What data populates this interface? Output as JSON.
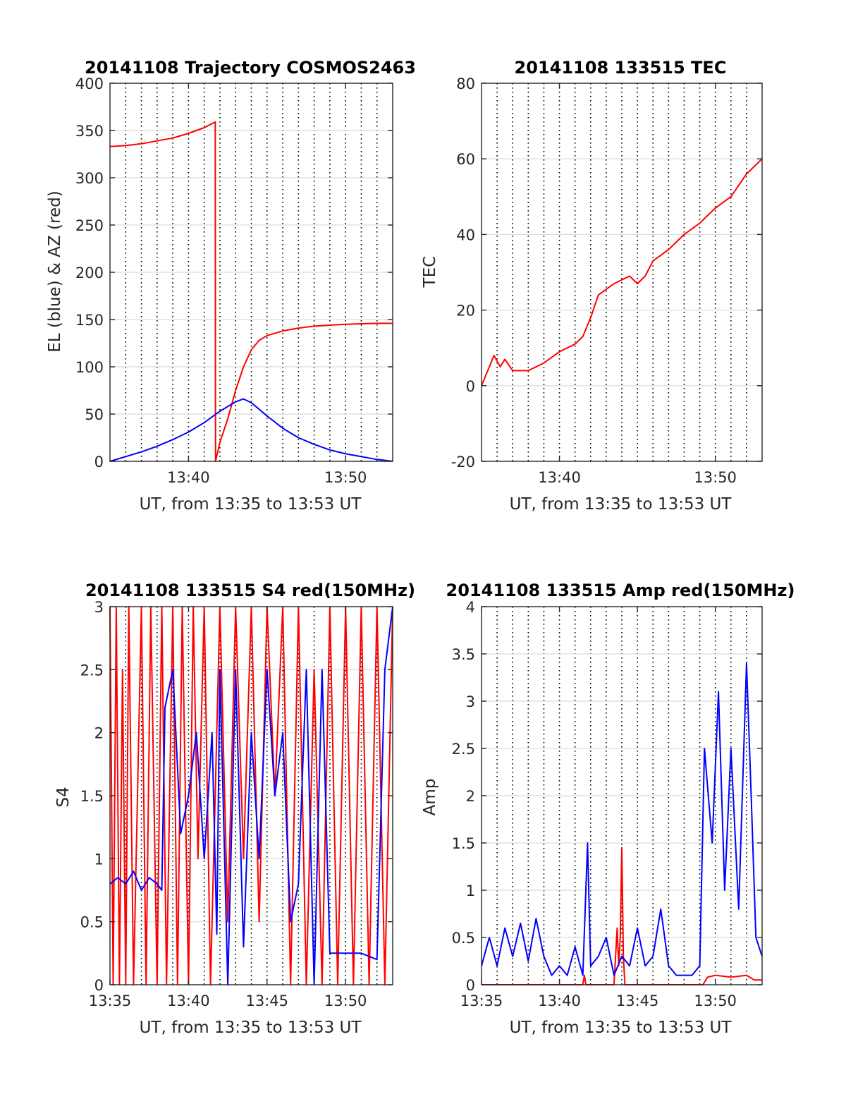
{
  "chart_data": [
    {
      "type": "line",
      "title": "20141108 Trajectory COSMOS2463",
      "xlabel": "UT, from 13:35 to 13:53 UT",
      "ylabel": "EL (blue) & AZ (red)",
      "xlim": [
        0,
        18
      ],
      "ylim": [
        0,
        400
      ],
      "x_ticks": [
        5,
        15
      ],
      "x_tick_labels": [
        "13:40",
        "13:50"
      ],
      "y_ticks": [
        0,
        50,
        100,
        150,
        200,
        250,
        300,
        350,
        400
      ],
      "grid": true,
      "series": [
        {
          "color": "#ff0000",
          "points": [
            [
              0,
              333
            ],
            [
              1,
              334
            ],
            [
              2,
              336
            ],
            [
              3,
              339
            ],
            [
              4,
              342
            ],
            [
              5,
              347
            ],
            [
              6,
              353
            ],
            [
              6.7,
              359
            ],
            [
              6.72,
              0
            ],
            [
              7,
              20
            ],
            [
              7.5,
              45
            ],
            [
              8,
              75
            ],
            [
              8.5,
              100
            ],
            [
              9,
              118
            ],
            [
              9.5,
              128
            ],
            [
              10,
              133
            ],
            [
              11,
              138
            ],
            [
              12,
              141
            ],
            [
              13,
              143
            ],
            [
              14,
              144
            ],
            [
              15,
              145
            ],
            [
              16,
              145.5
            ],
            [
              17,
              146
            ],
            [
              18,
              146
            ]
          ]
        },
        {
          "color": "#0000ff",
          "points": [
            [
              0,
              0
            ],
            [
              1,
              5
            ],
            [
              2,
              10
            ],
            [
              3,
              16
            ],
            [
              4,
              23
            ],
            [
              5,
              31
            ],
            [
              6,
              41
            ],
            [
              7,
              53
            ],
            [
              8,
              63
            ],
            [
              8.5,
              66
            ],
            [
              9,
              62
            ],
            [
              10,
              48
            ],
            [
              11,
              35
            ],
            [
              12,
              25
            ],
            [
              13,
              18
            ],
            [
              14,
              12
            ],
            [
              15,
              8
            ],
            [
              16,
              5
            ],
            [
              17,
              2
            ],
            [
              18,
              0
            ]
          ]
        }
      ]
    },
    {
      "type": "line",
      "title": "20141108 133515 TEC",
      "xlabel": "UT, from 13:35 to 13:53 UT",
      "ylabel": "TEC",
      "xlim": [
        0,
        18
      ],
      "ylim": [
        -20,
        80
      ],
      "x_ticks": [
        5,
        15
      ],
      "x_tick_labels": [
        "13:40",
        "13:50"
      ],
      "y_ticks": [
        -20,
        0,
        20,
        40,
        60,
        80
      ],
      "grid": true,
      "series": [
        {
          "color": "#ff0000",
          "points": [
            [
              0,
              0
            ],
            [
              0.5,
              5
            ],
            [
              0.8,
              8
            ],
            [
              1.2,
              5
            ],
            [
              1.5,
              7
            ],
            [
              2,
              4
            ],
            [
              3,
              4
            ],
            [
              4,
              6
            ],
            [
              5,
              9
            ],
            [
              6,
              11
            ],
            [
              6.5,
              13
            ],
            [
              7,
              18
            ],
            [
              7.5,
              24
            ],
            [
              8.5,
              27
            ],
            [
              9.5,
              29
            ],
            [
              10,
              27
            ],
            [
              10.5,
              29
            ],
            [
              11,
              33
            ],
            [
              12,
              36
            ],
            [
              13,
              40
            ],
            [
              14,
              43
            ],
            [
              15,
              47
            ],
            [
              16,
              50
            ],
            [
              17,
              56
            ],
            [
              18,
              60
            ]
          ]
        }
      ]
    },
    {
      "type": "line",
      "title": "20141108 133515 S4 red(150MHz)",
      "xlabel": "UT, from 13:35 to 13:53 UT",
      "ylabel": "S4",
      "xlim": [
        0,
        18
      ],
      "ylim": [
        0,
        3
      ],
      "x_ticks": [
        0,
        5,
        10,
        15
      ],
      "x_tick_labels": [
        "13:35",
        "13:40",
        "13:45",
        "13:50"
      ],
      "y_ticks": [
        0,
        0.5,
        1,
        1.5,
        2,
        2.5,
        3
      ],
      "grid": true,
      "series": [
        {
          "color": "#ff0000",
          "points": [
            [
              0,
              3
            ],
            [
              0.2,
              0
            ],
            [
              0.4,
              3
            ],
            [
              0.6,
              0
            ],
            [
              0.8,
              2.5
            ],
            [
              1,
              0
            ],
            [
              1.2,
              3
            ],
            [
              1.5,
              0
            ],
            [
              2,
              3
            ],
            [
              2.3,
              0
            ],
            [
              2.6,
              3
            ],
            [
              3,
              0
            ],
            [
              3.3,
              3
            ],
            [
              3.6,
              0
            ],
            [
              4,
              3
            ],
            [
              4.3,
              0
            ],
            [
              4.6,
              3
            ],
            [
              5,
              0
            ],
            [
              5.3,
              3
            ],
            [
              5.6,
              1
            ],
            [
              6,
              3
            ],
            [
              6.4,
              0
            ],
            [
              7,
              3
            ],
            [
              7.5,
              0.5
            ],
            [
              8,
              3
            ],
            [
              8.5,
              1
            ],
            [
              9,
              3
            ],
            [
              9.5,
              0.5
            ],
            [
              10,
              3
            ],
            [
              10.5,
              1.5
            ],
            [
              11,
              3
            ],
            [
              11.5,
              0
            ],
            [
              12,
              3
            ],
            [
              12.5,
              0
            ],
            [
              13,
              2.5
            ],
            [
              13.5,
              0
            ],
            [
              14,
              3
            ],
            [
              14.5,
              0
            ],
            [
              15,
              3
            ],
            [
              15.5,
              0
            ],
            [
              16,
              3
            ],
            [
              16.5,
              0
            ],
            [
              17,
              3
            ],
            [
              17.5,
              0
            ],
            [
              18,
              3
            ]
          ]
        },
        {
          "color": "#0000ff",
          "points": [
            [
              0,
              0.8
            ],
            [
              0.5,
              0.85
            ],
            [
              1,
              0.8
            ],
            [
              1.5,
              0.9
            ],
            [
              2,
              0.75
            ],
            [
              2.5,
              0.85
            ],
            [
              3,
              0.8
            ],
            [
              3.3,
              0.75
            ],
            [
              3.5,
              2.2
            ],
            [
              4,
              2.5
            ],
            [
              4.5,
              1.2
            ],
            [
              5,
              1.5
            ],
            [
              5.5,
              2
            ],
            [
              6,
              1
            ],
            [
              6.5,
              2
            ],
            [
              6.8,
              0.4
            ],
            [
              7,
              2.5
            ],
            [
              7.5,
              0
            ],
            [
              8,
              2.5
            ],
            [
              8.5,
              0.3
            ],
            [
              9,
              2
            ],
            [
              9.5,
              1
            ],
            [
              10,
              2.5
            ],
            [
              10.5,
              1.5
            ],
            [
              11,
              2
            ],
            [
              11.5,
              0.5
            ],
            [
              12,
              0.8
            ],
            [
              12.5,
              2.5
            ],
            [
              13,
              0
            ],
            [
              13.5,
              2.5
            ],
            [
              14,
              0.25
            ],
            [
              15,
              0.25
            ],
            [
              16,
              0.25
            ],
            [
              17,
              0.2
            ],
            [
              17.5,
              2.5
            ],
            [
              18,
              3
            ]
          ]
        }
      ]
    },
    {
      "type": "line",
      "title": "20141108 133515 Amp red(150MHz)",
      "xlabel": "UT, from 13:35 to 13:53 UT",
      "ylabel": "Amp",
      "xlim": [
        0,
        18
      ],
      "ylim": [
        0,
        4
      ],
      "x_ticks": [
        0,
        5,
        10,
        15
      ],
      "x_tick_labels": [
        "13:35",
        "13:40",
        "13:45",
        "13:50"
      ],
      "y_ticks": [
        0,
        0.5,
        1,
        1.5,
        2,
        2.5,
        3,
        3.5,
        4
      ],
      "grid": true,
      "series": [
        {
          "color": "#ff0000",
          "points": [
            [
              0,
              0
            ],
            [
              6.5,
              0
            ],
            [
              6.6,
              0.1
            ],
            [
              6.7,
              0
            ],
            [
              8.5,
              0
            ],
            [
              8.7,
              0.6
            ],
            [
              8.8,
              0.2
            ],
            [
              8.9,
              0.5
            ],
            [
              9.0,
              1.45
            ],
            [
              9.1,
              0.3
            ],
            [
              9.2,
              0
            ],
            [
              14.2,
              0
            ],
            [
              14.5,
              0.08
            ],
            [
              15,
              0.1
            ],
            [
              16,
              0.08
            ],
            [
              17,
              0.1
            ],
            [
              17.5,
              0.05
            ],
            [
              18,
              0.05
            ]
          ]
        },
        {
          "color": "#0000ff",
          "points": [
            [
              0,
              0.2
            ],
            [
              0.5,
              0.5
            ],
            [
              1,
              0.2
            ],
            [
              1.5,
              0.6
            ],
            [
              2,
              0.3
            ],
            [
              2.5,
              0.65
            ],
            [
              3,
              0.25
            ],
            [
              3.5,
              0.7
            ],
            [
              4,
              0.3
            ],
            [
              4.5,
              0.1
            ],
            [
              5,
              0.2
            ],
            [
              5.5,
              0.1
            ],
            [
              6,
              0.4
            ],
            [
              6.5,
              0.1
            ],
            [
              6.8,
              1.5
            ],
            [
              7,
              0.2
            ],
            [
              7.5,
              0.3
            ],
            [
              8,
              0.5
            ],
            [
              8.5,
              0.1
            ],
            [
              9,
              0.3
            ],
            [
              9.5,
              0.2
            ],
            [
              10,
              0.6
            ],
            [
              10.5,
              0.2
            ],
            [
              11,
              0.3
            ],
            [
              11.5,
              0.8
            ],
            [
              12,
              0.2
            ],
            [
              12.5,
              0.1
            ],
            [
              13,
              0.1
            ],
            [
              13.5,
              0.1
            ],
            [
              14,
              0.2
            ],
            [
              14.3,
              2.5
            ],
            [
              14.8,
              1.5
            ],
            [
              15.2,
              3.1
            ],
            [
              15.6,
              1
            ],
            [
              16,
              2.5
            ],
            [
              16.5,
              0.8
            ],
            [
              17,
              3.4
            ],
            [
              17.3,
              2
            ],
            [
              17.6,
              0.5
            ],
            [
              18,
              0.3
            ]
          ]
        }
      ]
    }
  ]
}
